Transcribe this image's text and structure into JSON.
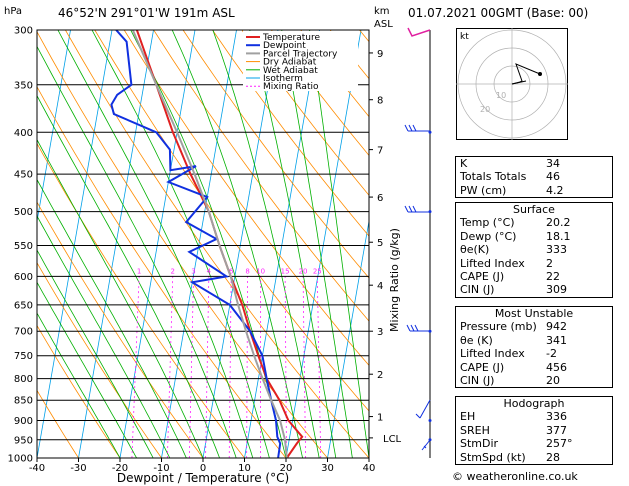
{
  "header": {
    "location": "46°52'N  291°01'W  191m  ASL",
    "date": "01.07.2021  00GMT  (Base: 00)",
    "hpa_label": "hPa",
    "km_label": "km",
    "asl_label": "ASL"
  },
  "legend": [
    "Temperature",
    "Dewpoint",
    "Parcel Trajectory",
    "Dry Adiabat",
    "Wet Adiabat",
    "Isotherm",
    "Mixing Ratio"
  ],
  "colors": {
    "temperature": "#e02020",
    "dewpoint": "#1030e0",
    "parcel": "#a0a0a0",
    "dry_adiabat": "#ff8c00",
    "wet_adiabat": "#00b000",
    "isotherm": "#00a0e8",
    "mixing_ratio": "#ff20ff",
    "wind": "#1030e0"
  },
  "chart_data": {
    "type": "line",
    "title": "",
    "xlabel": "Dewpoint / Temperature (°C)",
    "ylabel_right": "Mixing Ratio (g/kg)",
    "x_ticks": [
      -40,
      -30,
      -20,
      -10,
      0,
      10,
      20,
      30,
      40
    ],
    "pressure_levels": [
      300,
      350,
      400,
      450,
      500,
      550,
      600,
      650,
      700,
      750,
      800,
      850,
      900,
      950,
      1000
    ],
    "km_ticks": [
      {
        "label": "9",
        "p": 320
      },
      {
        "label": "8",
        "p": 365
      },
      {
        "label": "7",
        "p": 420
      },
      {
        "label": "6",
        "p": 480
      },
      {
        "label": "5",
        "p": 545
      },
      {
        "label": "4",
        "p": 615
      },
      {
        "label": "3",
        "p": 700
      },
      {
        "label": "2",
        "p": 790
      },
      {
        "label": "1",
        "p": 890
      },
      {
        "label": "LCL",
        "p": 945
      }
    ],
    "mixing_ratio_labels": [
      "1",
      "2",
      "3",
      "4",
      "6",
      "8",
      "10",
      "15",
      "20",
      "25"
    ],
    "series": [
      {
        "name": "Temperature",
        "points": [
          [
            20.2,
            1000
          ],
          [
            22,
            960
          ],
          [
            23,
            942
          ],
          [
            19,
            900
          ],
          [
            16,
            850
          ],
          [
            12,
            800
          ],
          [
            9,
            750
          ],
          [
            6,
            700
          ],
          [
            3,
            650
          ],
          [
            -1,
            600
          ],
          [
            -5,
            550
          ],
          [
            -9,
            500
          ],
          [
            -15,
            450
          ],
          [
            -21,
            400
          ],
          [
            -27,
            350
          ],
          [
            -34,
            300
          ]
        ]
      },
      {
        "name": "Dewpoint",
        "points": [
          [
            18.1,
            1000
          ],
          [
            18,
            960
          ],
          [
            17,
            942
          ],
          [
            16,
            900
          ],
          [
            14,
            850
          ],
          [
            12,
            800
          ],
          [
            10,
            750
          ],
          [
            6,
            700
          ],
          [
            0,
            650
          ],
          [
            -10,
            610
          ],
          [
            -2,
            600
          ],
          [
            -12,
            560
          ],
          [
            -6,
            540
          ],
          [
            -14,
            515
          ],
          [
            -10,
            480
          ],
          [
            -20,
            460
          ],
          [
            -14,
            440
          ],
          [
            -20,
            445
          ],
          [
            -21,
            420
          ],
          [
            -25,
            400
          ],
          [
            -36,
            380
          ],
          [
            -37,
            370
          ],
          [
            -36,
            360
          ],
          [
            -33,
            350
          ],
          [
            -36,
            310
          ],
          [
            -39,
            300
          ]
        ]
      },
      {
        "name": "Parcel Trajectory",
        "points": [
          [
            20.2,
            1000
          ],
          [
            19,
            950
          ],
          [
            17,
            900
          ],
          [
            14,
            850
          ],
          [
            11,
            800
          ],
          [
            8,
            750
          ],
          [
            5,
            700
          ],
          [
            2,
            650
          ],
          [
            -1,
            600
          ],
          [
            -5,
            550
          ],
          [
            -9,
            500
          ],
          [
            -14,
            450
          ],
          [
            -20,
            400
          ],
          [
            -27,
            350
          ],
          [
            -35,
            300
          ]
        ]
      }
    ]
  },
  "hodograph": {
    "unit_label": "kt",
    "ring_labels": [
      "10",
      "20"
    ]
  },
  "indices": [
    {
      "label": "K",
      "value": "34"
    },
    {
      "label": "Totals Totals",
      "value": "46"
    },
    {
      "label": "PW (cm)",
      "value": "4.2"
    }
  ],
  "surface": {
    "title": "Surface",
    "rows": [
      {
        "label": "Temp (°C)",
        "value": "20.2"
      },
      {
        "label": "Dewp (°C)",
        "value": "18.1"
      },
      {
        "label": "θe(K)",
        "value": "333"
      },
      {
        "label": "Lifted Index",
        "value": "2"
      },
      {
        "label": "CAPE (J)",
        "value": "22"
      },
      {
        "label": "CIN (J)",
        "value": "309"
      }
    ]
  },
  "most_unstable": {
    "title": "Most Unstable",
    "rows": [
      {
        "label": "Pressure (mb)",
        "value": "942"
      },
      {
        "label": "θe (K)",
        "value": "341"
      },
      {
        "label": "Lifted Index",
        "value": "-2"
      },
      {
        "label": "CAPE (J)",
        "value": "456"
      },
      {
        "label": "CIN (J)",
        "value": "20"
      }
    ]
  },
  "hodograph_table": {
    "title": "Hodograph",
    "rows": [
      {
        "label": "EH",
        "value": "336"
      },
      {
        "label": "SREH",
        "value": "377"
      },
      {
        "label": "StmDir",
        "value": "257°"
      },
      {
        "label": "StmSpd (kt)",
        "value": "28"
      }
    ]
  },
  "copyright": "© weatheronline.co.uk"
}
